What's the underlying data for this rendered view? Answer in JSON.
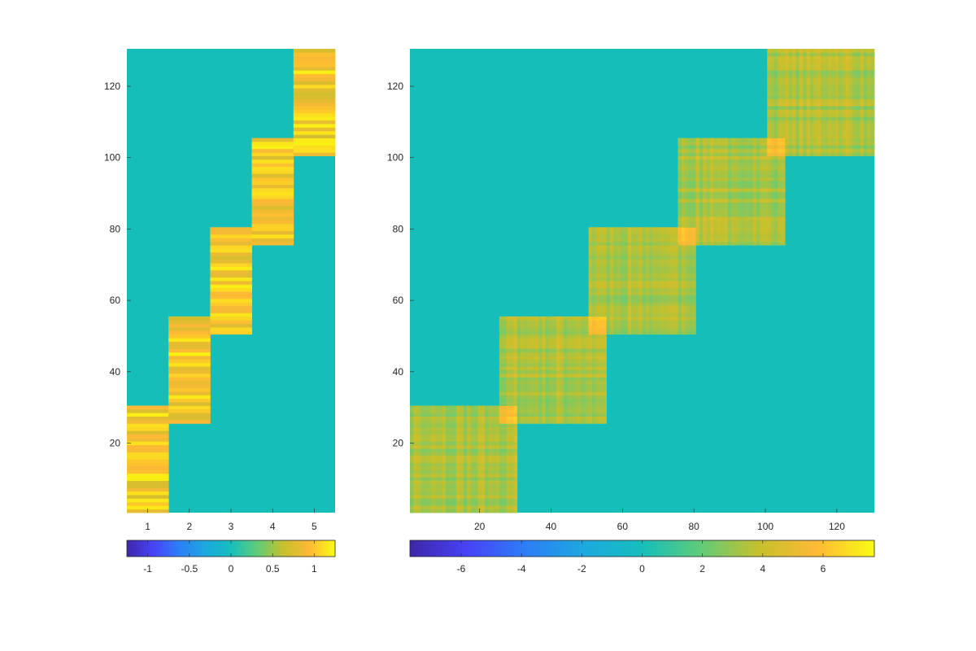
{
  "chart_data": [
    {
      "type": "heatmap",
      "title": "",
      "xlabel": "",
      "ylabel": "",
      "n_rows": 130,
      "n_cols": 5,
      "xlim": [
        0.5,
        5.5
      ],
      "ylim": [
        0.5,
        130.5
      ],
      "x_ticks": [
        1,
        2,
        3,
        4,
        5
      ],
      "x_tick_labels": [
        "1",
        "2",
        "3",
        "4",
        "5"
      ],
      "y_ticks": [
        20,
        40,
        60,
        80,
        100,
        120
      ],
      "y_tick_labels": [
        "20",
        "40",
        "60",
        "80",
        "100",
        "120"
      ],
      "background_value": 0,
      "value_range_in_blocks": [
        0.7,
        1.2
      ],
      "blocks": [
        {
          "column": 1,
          "row_start": 1,
          "row_end": 30
        },
        {
          "column": 2,
          "row_start": 26,
          "row_end": 55
        },
        {
          "column": 3,
          "row_start": 51,
          "row_end": 80
        },
        {
          "column": 4,
          "row_start": 76,
          "row_end": 105
        },
        {
          "column": 5,
          "row_start": 101,
          "row_end": 130
        }
      ],
      "colorbar": {
        "location": "south",
        "limits": [
          -1.25,
          1.25
        ],
        "ticks": [
          -1,
          -0.5,
          0,
          0.5,
          1
        ],
        "tick_labels": [
          "-1",
          "-0.5",
          "0",
          "0.5",
          "1"
        ]
      },
      "colormap": "parula",
      "grid": false
    },
    {
      "type": "heatmap",
      "title": "",
      "xlabel": "",
      "ylabel": "",
      "n_rows": 130,
      "n_cols": 130,
      "xlim": [
        0.5,
        130.5
      ],
      "ylim": [
        0.5,
        130.5
      ],
      "x_ticks": [
        20,
        40,
        60,
        80,
        100,
        120
      ],
      "x_tick_labels": [
        "20",
        "40",
        "60",
        "80",
        "100",
        "120"
      ],
      "y_ticks": [
        20,
        40,
        60,
        80,
        100,
        120
      ],
      "y_tick_labels": [
        "20",
        "40",
        "60",
        "80",
        "100",
        "120"
      ],
      "background_value": 0,
      "value_range_in_blocks": [
        2.2,
        4.6
      ],
      "overlap_value_range": [
        5.0,
        6.8
      ],
      "blocks": [
        {
          "row_start": 1,
          "row_end": 30,
          "col_start": 1,
          "col_end": 30
        },
        {
          "row_start": 26,
          "row_end": 55,
          "col_start": 26,
          "col_end": 55
        },
        {
          "row_start": 51,
          "row_end": 80,
          "col_start": 51,
          "col_end": 80
        },
        {
          "row_start": 76,
          "row_end": 105,
          "col_start": 76,
          "col_end": 105
        },
        {
          "row_start": 101,
          "row_end": 130,
          "col_start": 101,
          "col_end": 130
        }
      ],
      "colorbar": {
        "location": "south",
        "limits": [
          -7.7,
          7.7
        ],
        "ticks": [
          -6,
          -4,
          -2,
          0,
          2,
          4,
          6
        ],
        "tick_labels": [
          "-6",
          "-4",
          "-2",
          "0",
          "2",
          "4",
          "6"
        ]
      },
      "colormap": "parula",
      "grid": false
    }
  ]
}
